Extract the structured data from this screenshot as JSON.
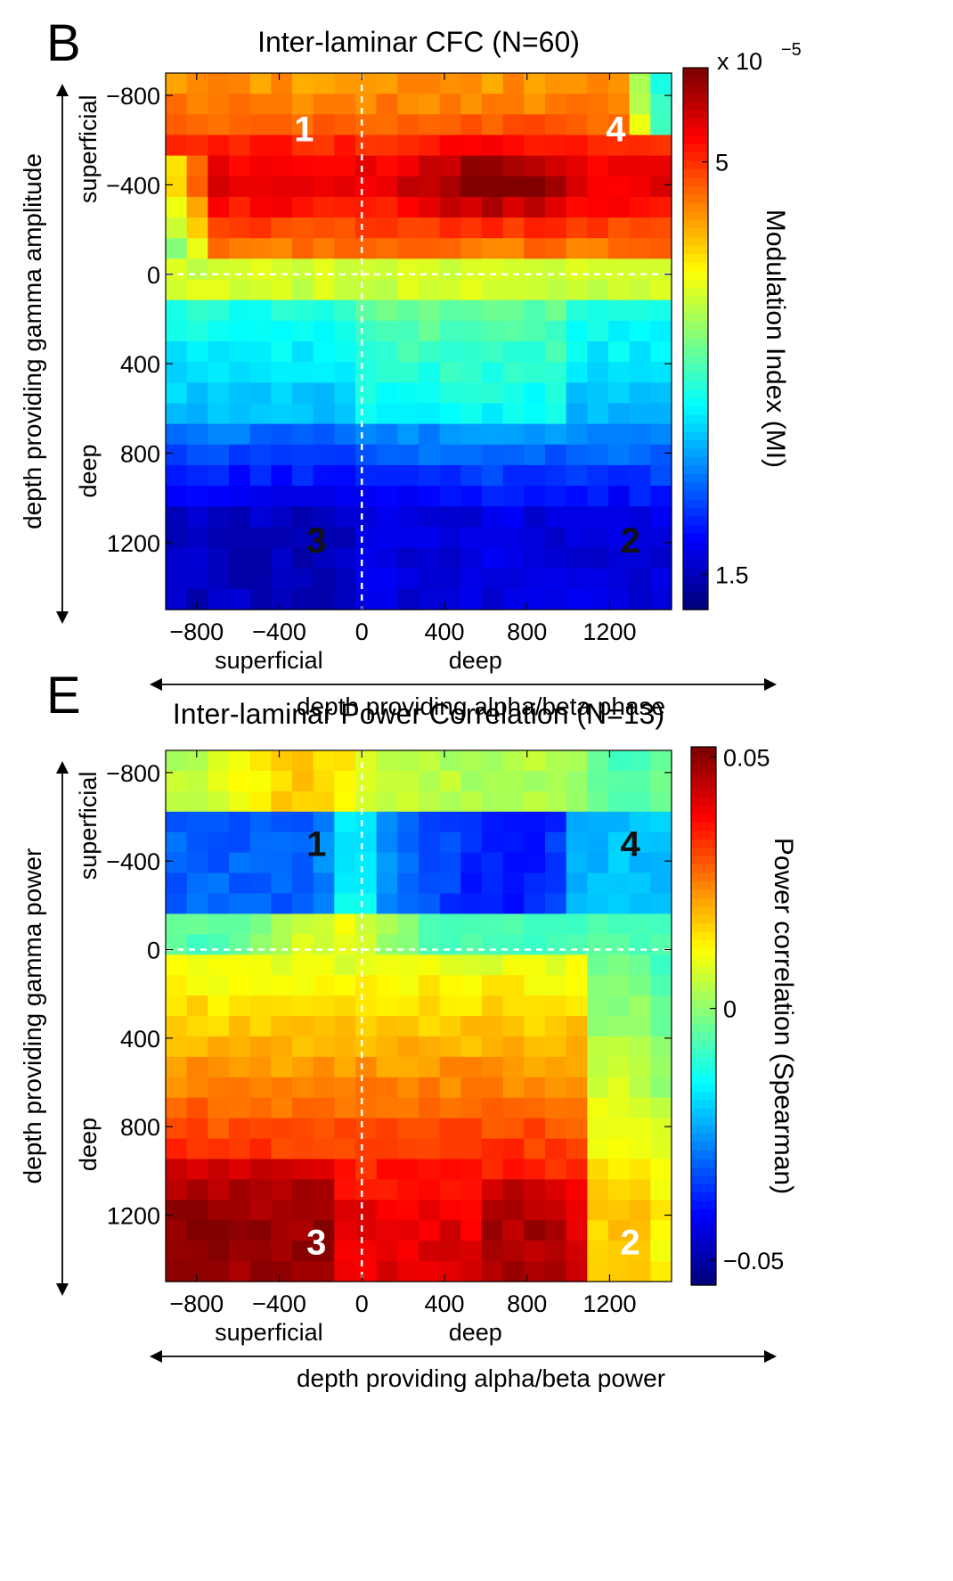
{
  "chart_data": [
    {
      "type": "heatmap",
      "panel_letter": "B",
      "title": "Inter-laminar CFC (N=60)",
      "xlabel": "depth providing alpha/beta phase",
      "ylabel": "depth providing gamma amplitude",
      "x_sublabels": [
        "superficial",
        "deep"
      ],
      "y_sublabels": [
        "superficial",
        "deep"
      ],
      "xlim": [
        -950,
        1500
      ],
      "ylim": [
        -900,
        1500
      ],
      "x_ticks": [
        -800,
        -400,
        0,
        400,
        800,
        1200
      ],
      "x_tick_labels": [
        "−800",
        "−400",
        "0",
        "400",
        "800",
        "1200"
      ],
      "y_ticks": [
        -800,
        -400,
        0,
        400,
        800,
        1200
      ],
      "y_tick_labels": [
        "−800",
        "−400",
        "0",
        "400",
        "800",
        "1200"
      ],
      "colorbar": {
        "label": "Modulation Index (MI)",
        "multiplier": "x 10",
        "exponent": "−5",
        "ticks": [
          5,
          1.5
        ],
        "tick_labels": [
          "5",
          "1.5"
        ],
        "range": [
          1.2,
          5.8
        ]
      },
      "region_labels": [
        {
          "text": "1",
          "x": -280,
          "y": -650,
          "color": "#ffffff"
        },
        {
          "text": "4",
          "x": 1230,
          "y": -650,
          "color": "#ffffff"
        },
        {
          "text": "3",
          "x": -220,
          "y": 1190,
          "color": "#111111"
        },
        {
          "text": "2",
          "x": 1300,
          "y": 1190,
          "color": "#111111"
        }
      ],
      "rows": [
        {
          "depth": -800,
          "quadrant_values": {
            "superficial_phase": 4.2,
            "deep_phase": 5.0
          }
        },
        {
          "depth": -400,
          "quadrant_values": {
            "superficial_phase": 4.8,
            "deep_phase": 5.6
          }
        },
        {
          "depth": 0,
          "quadrant_values": {
            "superficial_phase": 3.6,
            "deep_phase": 3.8
          }
        },
        {
          "depth": 400,
          "quadrant_values": {
            "superficial_phase": 2.5,
            "deep_phase": 2.9
          }
        },
        {
          "depth": 800,
          "quadrant_values": {
            "superficial_phase": 2.0,
            "deep_phase": 2.7
          }
        },
        {
          "depth": 1200,
          "quadrant_values": {
            "superficial_phase": 1.3,
            "deep_phase": 1.5
          }
        }
      ]
    },
    {
      "type": "heatmap",
      "panel_letter": "E",
      "title": "Inter-laminar Power Correlation (N=13)",
      "xlabel": "depth providing alpha/beta power",
      "ylabel": "depth providing gamma power",
      "x_sublabels": [
        "superficial",
        "deep"
      ],
      "y_sublabels": [
        "superficial",
        "deep"
      ],
      "xlim": [
        -950,
        1500
      ],
      "ylim": [
        -900,
        1500
      ],
      "x_ticks": [
        -800,
        -400,
        0,
        400,
        800,
        1200
      ],
      "x_tick_labels": [
        "−800",
        "−400",
        "0",
        "400",
        "800",
        "1200"
      ],
      "y_ticks": [
        -800,
        -400,
        0,
        400,
        800,
        1200
      ],
      "y_tick_labels": [
        "−800",
        "−400",
        "0",
        "400",
        "800",
        "1200"
      ],
      "colorbar": {
        "label": "Power correlation (Spearman)",
        "ticks": [
          0.05,
          0,
          -0.05
        ],
        "tick_labels": [
          "0.05",
          "0",
          "−0.05"
        ],
        "range": [
          -0.055,
          0.052
        ]
      },
      "region_labels": [
        {
          "text": "1",
          "x": -220,
          "y": -480,
          "color": "#111111"
        },
        {
          "text": "4",
          "x": 1300,
          "y": -480,
          "color": "#111111"
        },
        {
          "text": "3",
          "x": -220,
          "y": 1320,
          "color": "#ffffff"
        },
        {
          "text": "2",
          "x": 1300,
          "y": 1320,
          "color": "#ffffff"
        }
      ],
      "rows": [
        {
          "depth": -800,
          "quadrant_values": {
            "superficial_power": 0.02,
            "deep_power": 0.0
          }
        },
        {
          "depth": -400,
          "quadrant_values": {
            "superficial_power": -0.035,
            "deep_power": -0.045
          }
        },
        {
          "depth": 0,
          "quadrant_values": {
            "superficial_power": 0.02,
            "deep_power": 0.015
          }
        },
        {
          "depth": 400,
          "quadrant_values": {
            "superficial_power": 0.03,
            "deep_power": 0.025
          }
        },
        {
          "depth": 800,
          "quadrant_values": {
            "superficial_power": 0.04,
            "deep_power": 0.035
          }
        },
        {
          "depth": 1200,
          "quadrant_values": {
            "superficial_power": 0.05,
            "deep_power": 0.045
          }
        }
      ]
    }
  ]
}
